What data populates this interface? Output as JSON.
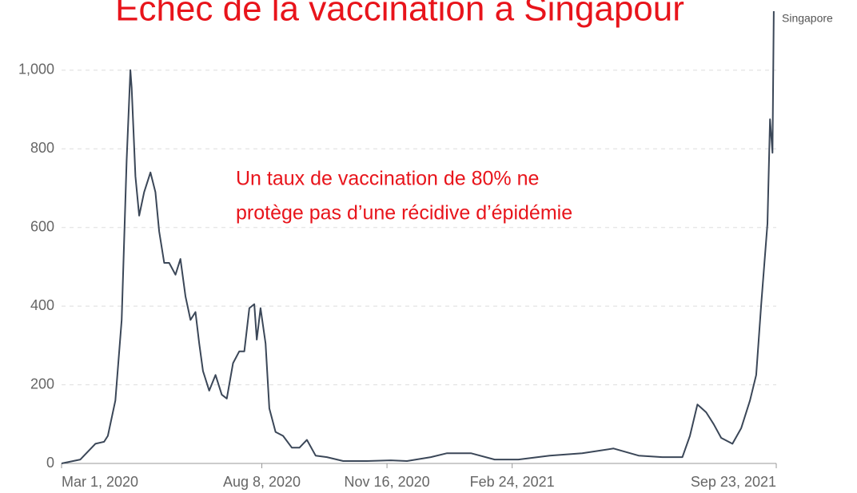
{
  "chart_data": {
    "type": "line",
    "title": "Échec de la vaccination à Singapour",
    "annotation": [
      "Un taux de vaccination de 80% ne",
      "protège pas d’une récidive d’épidémie"
    ],
    "x": [
      "2020-03-01",
      "2020-03-16",
      "2020-03-28",
      "2020-04-04",
      "2020-04-07",
      "2020-04-13",
      "2020-04-18",
      "2020-04-22",
      "2020-04-25",
      "2020-04-26",
      "2020-04-29",
      "2020-05-02",
      "2020-05-06",
      "2020-05-11",
      "2020-05-15",
      "2020-05-18",
      "2020-05-22",
      "2020-05-26",
      "2020-05-31",
      "2020-06-04",
      "2020-06-08",
      "2020-06-12",
      "2020-06-16",
      "2020-06-19",
      "2020-06-22",
      "2020-06-27",
      "2020-07-02",
      "2020-07-07",
      "2020-07-11",
      "2020-07-16",
      "2020-07-21",
      "2020-07-25",
      "2020-07-29",
      "2020-08-02",
      "2020-08-04",
      "2020-08-07",
      "2020-08-11",
      "2020-08-14",
      "2020-08-19",
      "2020-08-25",
      "2020-09-01",
      "2020-09-07",
      "2020-09-13",
      "2020-09-20",
      "2020-09-29",
      "2020-10-12",
      "2020-10-31",
      "2020-11-19",
      "2020-12-02",
      "2020-12-21",
      "2021-01-03",
      "2021-01-22",
      "2021-02-10",
      "2021-03-01",
      "2021-03-26",
      "2021-04-21",
      "2021-05-16",
      "2021-06-05",
      "2021-06-24",
      "2021-07-10",
      "2021-07-16",
      "2021-07-22",
      "2021-07-29",
      "2021-08-04",
      "2021-08-10",
      "2021-08-19",
      "2021-08-26",
      "2021-09-02",
      "2021-09-07",
      "2021-09-11",
      "2021-09-16",
      "2021-09-18",
      "2021-09-20",
      "2021-09-21"
    ],
    "series": [
      {
        "name": "Singapore",
        "color": "#3b4758",
        "values": [
          0,
          10,
          50,
          55,
          70,
          160,
          365,
          770,
          1000,
          955,
          730,
          630,
          690,
          740,
          690,
          590,
          510,
          510,
          480,
          520,
          425,
          365,
          385,
          305,
          235,
          185,
          225,
          175,
          165,
          255,
          285,
          285,
          395,
          405,
          315,
          395,
          305,
          140,
          80,
          70,
          40,
          40,
          60,
          20,
          16,
          6,
          6,
          8,
          6,
          16,
          26,
          26,
          10,
          10,
          20,
          26,
          38,
          20,
          16,
          16,
          70,
          150,
          130,
          100,
          65,
          50,
          90,
          160,
          225,
          405,
          610,
          875,
          790,
          1150
        ]
      }
    ],
    "xlim": [
      "2020-03-01",
      "2021-09-23"
    ],
    "xticks": [
      {
        "value": "2020-03-01",
        "label": "Mar 1, 2020"
      },
      {
        "value": "2020-08-08",
        "label": "Aug 8, 2020"
      },
      {
        "value": "2020-11-16",
        "label": "Nov 16, 2020"
      },
      {
        "value": "2021-02-24",
        "label": "Feb 24, 2021"
      },
      {
        "value": "2021-09-23",
        "label": "Sep 23, 2021"
      }
    ],
    "ylim": [
      0,
      1150
    ],
    "yticks": [
      0,
      200,
      400,
      600,
      800,
      {
        "value": 1000,
        "label": "1,000"
      }
    ],
    "grid": true
  }
}
